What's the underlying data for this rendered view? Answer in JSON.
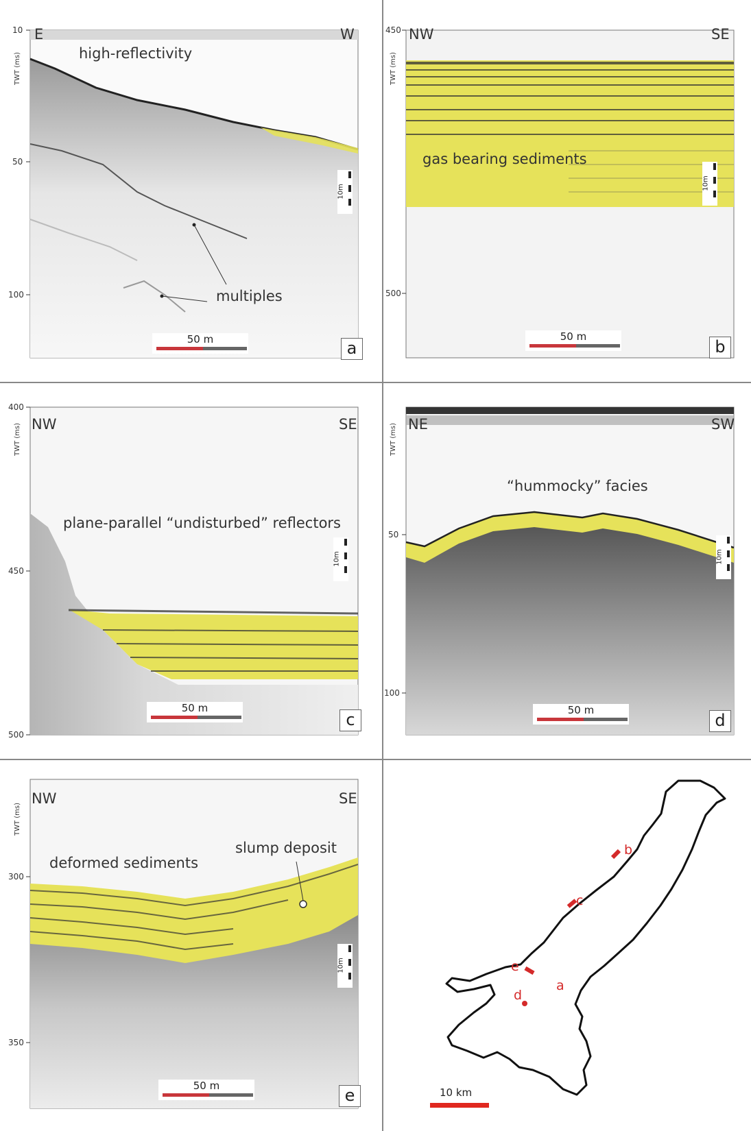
{
  "axis_title": "TWT (ms)",
  "panels": {
    "a": {
      "letter": "a",
      "dir_left": "E",
      "dir_right": "W",
      "ticks": [
        "10",
        "50",
        "100"
      ],
      "labels": {
        "top": "high-reflectivity",
        "multiples": "multiples"
      },
      "horizontal_scale": "50 m",
      "vertical_scale": "10m"
    },
    "b": {
      "letter": "b",
      "dir_left": "NW",
      "dir_right": "SE",
      "ticks": [
        "450",
        "500"
      ],
      "labels": {
        "main": "gas bearing sediments"
      },
      "horizontal_scale": "50 m",
      "vertical_scale": "10m"
    },
    "c": {
      "letter": "c",
      "dir_left": "NW",
      "dir_right": "SE",
      "ticks": [
        "400",
        "450",
        "500"
      ],
      "labels": {
        "main": "plane-parallel “undisturbed” reflectors"
      },
      "horizontal_scale": "50 m",
      "vertical_scale": "10m"
    },
    "d": {
      "letter": "d",
      "dir_left": "NE",
      "dir_right": "SW",
      "ticks": [
        "50",
        "100"
      ],
      "labels": {
        "main": "“hummocky” facies"
      },
      "horizontal_scale": "50 m",
      "vertical_scale": "10m"
    },
    "e": {
      "letter": "e",
      "dir_left": "NW",
      "dir_right": "SE",
      "ticks": [
        "300",
        "350"
      ],
      "labels": {
        "main": "deformed sediments",
        "slump": "slump deposit"
      },
      "horizontal_scale": "50 m",
      "vertical_scale": "10m"
    }
  },
  "map": {
    "site_labels": [
      "b",
      "c",
      "e",
      "a",
      "d"
    ],
    "scale_label": "10 km",
    "colors": {
      "outline": "#111111",
      "sites": "#d42a2a"
    }
  },
  "colors": {
    "highlight": "#e6e25a",
    "scale_red": "#c8363b",
    "scale_grey": "#666666"
  }
}
